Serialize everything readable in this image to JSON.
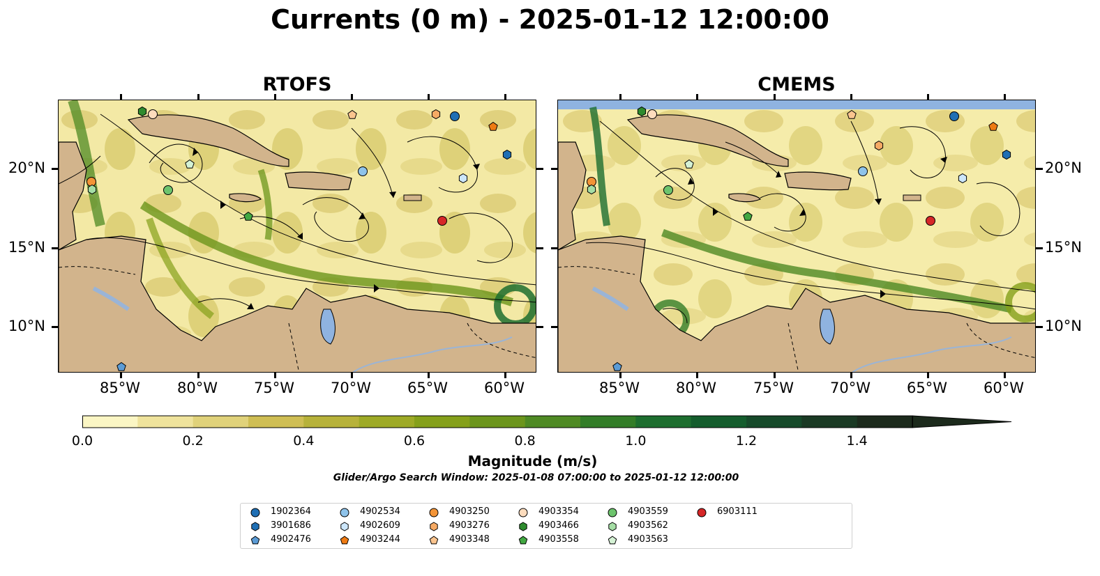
{
  "title": "Currents (0 m) - 2025-01-12 12:00:00",
  "panels": [
    {
      "title": "RTOFS"
    },
    {
      "title": "CMEMS"
    }
  ],
  "axes": {
    "x_ticks": [
      "85°W",
      "80°W",
      "75°W",
      "70°W",
      "65°W",
      "60°W"
    ],
    "y_ticks": [
      "20°N",
      "15°N",
      "10°N"
    ]
  },
  "colorbar": {
    "label": "Magnitude (m/s)",
    "ticks": [
      "0.0",
      "0.2",
      "0.4",
      "0.6",
      "0.8",
      "1.0",
      "1.2",
      "1.4"
    ],
    "min": 0.0,
    "max": 1.5,
    "extend": "max",
    "colors": [
      "#fbf6c4",
      "#efe39c",
      "#e0d27a",
      "#cfbe54",
      "#b7b23a",
      "#9eaa26",
      "#85a01a",
      "#6c951c",
      "#4f8a24",
      "#337d28",
      "#1d6e2f",
      "#145d2d",
      "#164a2a",
      "#1a3a24",
      "#1c2a1c"
    ]
  },
  "search_window_note": "Glider/Argo Search Window: 2025-01-08 07:00:00 to 2025-01-12 12:00:00",
  "legend": [
    {
      "id": "1902364",
      "marker": "circle",
      "color": "#1f6fb4"
    },
    {
      "id": "3901686",
      "marker": "hexagon",
      "color": "#1f6fb4"
    },
    {
      "id": "4902476",
      "marker": "pentagon",
      "color": "#5b9bd5"
    },
    {
      "id": "4902534",
      "marker": "circle",
      "color": "#8ec3ea"
    },
    {
      "id": "4902609",
      "marker": "hexagon",
      "color": "#cce6fa"
    },
    {
      "id": "4903244",
      "marker": "pentagon",
      "color": "#ee7a12"
    },
    {
      "id": "4903250",
      "marker": "circle",
      "color": "#f39437"
    },
    {
      "id": "4903276",
      "marker": "hexagon",
      "color": "#f6aa64"
    },
    {
      "id": "4903348",
      "marker": "pentagon",
      "color": "#fac48e"
    },
    {
      "id": "4903354",
      "marker": "circle",
      "color": "#fddcbd"
    },
    {
      "id": "4903466",
      "marker": "hexagon",
      "color": "#2e8b2e"
    },
    {
      "id": "4903558",
      "marker": "pentagon",
      "color": "#42a842"
    },
    {
      "id": "4903559",
      "marker": "circle",
      "color": "#6dc46d"
    },
    {
      "id": "4903562",
      "marker": "hexagon",
      "color": "#a5dea5"
    },
    {
      "id": "4903563",
      "marker": "pentagon",
      "color": "#d5f2d5"
    },
    {
      "id": "6903111",
      "marker": "circle",
      "color": "#d62728"
    }
  ],
  "colors": {
    "land": "#d2b48c",
    "water_body": "#8fb3e0",
    "river": "#9ab4d6",
    "streamline": "#000000"
  }
}
